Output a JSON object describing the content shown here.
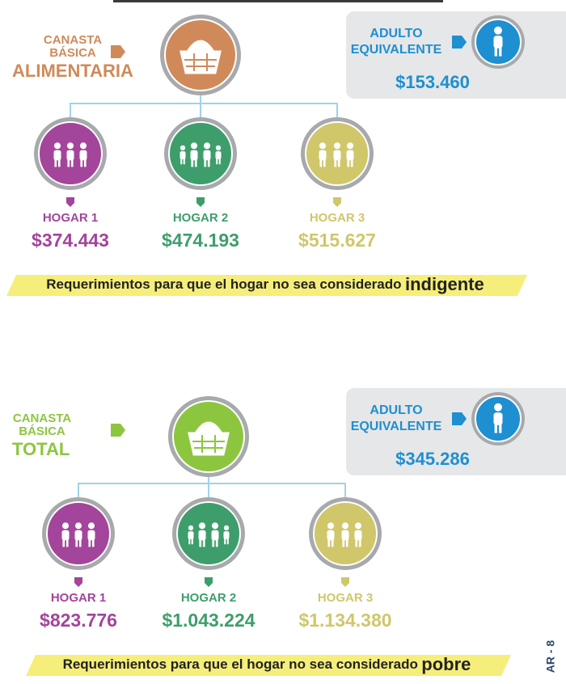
{
  "sections": [
    {
      "label_lines": [
        "CANASTA",
        "BÁSICA"
      ],
      "label_main": "ALIMENTARIA",
      "color": "#d08a5a",
      "adult": {
        "label_lines": [
          "ADULTO",
          "EQUIVALENTE"
        ],
        "value": "$153.460"
      },
      "households": [
        {
          "name": "HOGAR 1",
          "value": "$374.443",
          "color": "#a3459a"
        },
        {
          "name": "HOGAR 2",
          "value": "$474.193",
          "color": "#3e9e6b"
        },
        {
          "name": "HOGAR 3",
          "value": "$515.627",
          "color": "#cfc76a"
        }
      ],
      "banner_text": "Requerimientos para que el hogar no sea considerado",
      "banner_emphasis": "indigente"
    },
    {
      "label_lines": [
        "CANASTA",
        "BÁSICA"
      ],
      "label_main": "TOTAL",
      "color": "#8cc63f",
      "adult": {
        "label_lines": [
          "ADULTO",
          "EQUIVALENTE"
        ],
        "value": "$345.286"
      },
      "households": [
        {
          "name": "HOGAR 1",
          "value": "$823.776",
          "color": "#a3459a"
        },
        {
          "name": "HOGAR 2",
          "value": "$1.043.224",
          "color": "#3e9e6b"
        },
        {
          "name": "HOGAR 3",
          "value": "$1.134.380",
          "color": "#cfc76a"
        }
      ],
      "banner_text": "Requerimientos para que el hogar no sea considerado",
      "banner_emphasis": "pobre"
    }
  ],
  "side_text": "AR - 8"
}
